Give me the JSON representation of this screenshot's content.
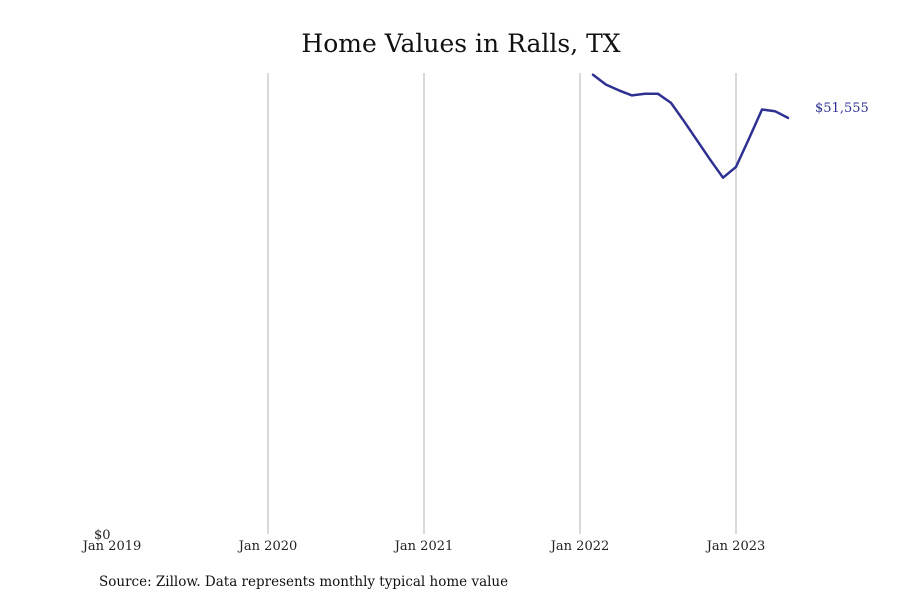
{
  "chart_data": {
    "type": "line",
    "title": "Home Values in Ralls, TX",
    "xlabel": "",
    "ylabel": "",
    "x_tick_labels": [
      "Jan 2019",
      "Jan 2020",
      "Jan 2021",
      "Jan 2022",
      "Jan 2023"
    ],
    "x_tick_dates": [
      "2019-01",
      "2020-01",
      "2021-01",
      "2022-01",
      "2023-01"
    ],
    "y_tick_label": "$0",
    "xlim": [
      "2019-01",
      "2023-08"
    ],
    "ylim": [
      0,
      55500
    ],
    "grid": "vertical",
    "legend": "none",
    "color": "#2e3192",
    "series": [
      {
        "x": [
          "2022-02",
          "2022-03",
          "2022-04",
          "2022-05",
          "2022-06",
          "2022-07",
          "2022-08",
          "2022-09",
          "2022-10",
          "2022-11",
          "2022-12",
          "2023-01",
          "2023-02",
          "2023-03",
          "2023-04",
          "2023-05"
        ],
        "values": [
          55300,
          54100,
          53400,
          52800,
          53000,
          53000,
          51900,
          49700,
          47400,
          45100,
          42900,
          44200,
          47600,
          51100,
          50900,
          50100
        ]
      }
    ],
    "end_label": "$51,555"
  },
  "source_note": "Source: Zillow. Data represents monthly typical home value"
}
